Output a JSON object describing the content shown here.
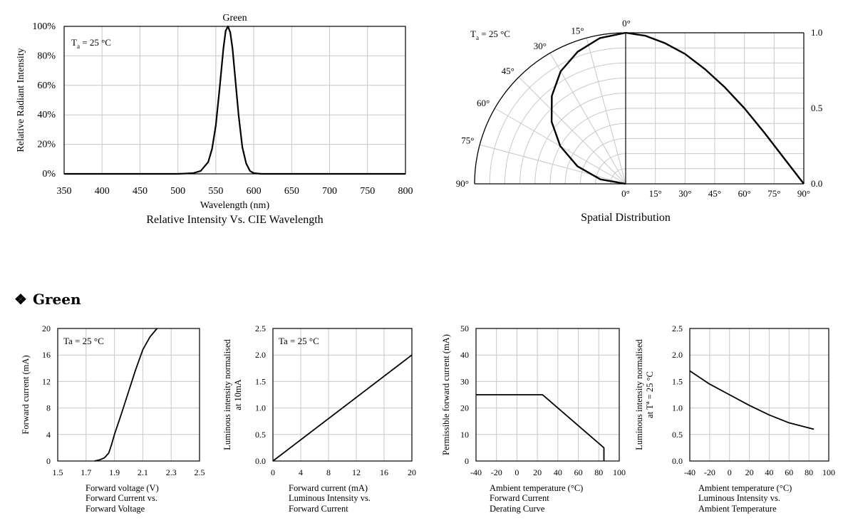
{
  "section": {
    "symbol": "❖",
    "title": "Green"
  },
  "chart_data": [
    {
      "type": "line",
      "id": "spectrum",
      "title": "Green",
      "caption": "Relative Intensity Vs. CIE Wavelength",
      "xlabel": "Wavelength (nm)",
      "ylabel": "Relative Radiant Intensity",
      "annotation": "T_a = 25 °C",
      "xlim": [
        350,
        800
      ],
      "ylim": [
        0,
        100
      ],
      "xticks": [
        "350",
        "400",
        "450",
        "500",
        "550",
        "600",
        "650",
        "700",
        "750",
        "800"
      ],
      "yticks": [
        "0%",
        "20%",
        "40%",
        "60%",
        "80%",
        "100%"
      ],
      "grid": true,
      "series": [
        {
          "x": [
            350,
            500,
            520,
            530,
            540,
            545,
            550,
            555,
            560,
            563,
            566,
            569,
            572,
            575,
            580,
            585,
            590,
            595,
            600,
            610,
            620,
            800
          ],
          "y": [
            0,
            0,
            0.5,
            2,
            8,
            17,
            33,
            58,
            85,
            97,
            100,
            96,
            85,
            68,
            40,
            18,
            7,
            2,
            0.5,
            0,
            0,
            0
          ]
        }
      ]
    },
    {
      "type": "polar",
      "id": "spatial",
      "caption": "Spatial Distribution",
      "annotation": "T_a = 25 °C",
      "angle_labels": [
        "0°",
        "15°",
        "30°",
        "45°",
        "60°",
        "75°",
        "90°"
      ],
      "bottom_labels": [
        "0°",
        "15°",
        "30°",
        "45°",
        "60°",
        "75°",
        "90°"
      ],
      "right_ticks": [
        "0.0",
        "0.5",
        "1.0"
      ],
      "series": [
        {
          "angle_deg": [
            0,
            10,
            20,
            30,
            40,
            50,
            60,
            70,
            80,
            90
          ],
          "intensity": [
            1.0,
            0.98,
            0.93,
            0.86,
            0.76,
            0.64,
            0.5,
            0.34,
            0.17,
            0.0
          ]
        }
      ]
    },
    {
      "type": "line",
      "id": "iv",
      "caption": [
        "Forward Current vs.",
        "Forward Voltage"
      ],
      "xlabel": "Forward voltage (V)",
      "ylabel": "Forward current (mA)",
      "annotation": "Ta = 25 °C",
      "xlim": [
        1.5,
        2.5
      ],
      "ylim": [
        0,
        20
      ],
      "xticks": [
        "1.5",
        "1.7",
        "1.9",
        "2.1",
        "2.3",
        "2.5"
      ],
      "yticks": [
        "0",
        "4",
        "8",
        "12",
        "16",
        "20"
      ],
      "grid": true,
      "series": [
        {
          "x": [
            1.76,
            1.8,
            1.83,
            1.86,
            1.88,
            1.9,
            1.95,
            2.0,
            2.05,
            2.1,
            2.15,
            2.2
          ],
          "y": [
            0,
            0.2,
            0.5,
            1.2,
            2.5,
            4,
            7.2,
            10.5,
            13.8,
            16.8,
            18.7,
            20
          ]
        }
      ]
    },
    {
      "type": "line",
      "id": "lum-vs-current",
      "caption": [
        "Luminous Intensity vs.",
        "Forward Current"
      ],
      "xlabel": "Forward current (mA)",
      "ylabel": [
        "Luminous intensity normalised",
        "at 10mA"
      ],
      "annotation": "Ta = 25 °C",
      "xlim": [
        0,
        20
      ],
      "ylim": [
        0,
        2.5
      ],
      "xticks": [
        "0",
        "4",
        "8",
        "12",
        "16",
        "20"
      ],
      "yticks": [
        "0.0",
        "0.5",
        "1.0",
        "1.5",
        "2.0",
        "2.5"
      ],
      "grid": true,
      "series": [
        {
          "x": [
            0,
            20
          ],
          "y": [
            0,
            2.0
          ]
        }
      ]
    },
    {
      "type": "line",
      "id": "derating",
      "caption": [
        "Forward Current",
        "Derating  Curve"
      ],
      "xlabel": "Ambient temperature (°C)",
      "ylabel": "Permissible forward current (mA)",
      "xlim": [
        -40,
        100
      ],
      "ylim": [
        0,
        50
      ],
      "xticks": [
        "-40",
        "-20",
        "0",
        "20",
        "40",
        "60",
        "80",
        "100"
      ],
      "yticks": [
        "0",
        "10",
        "20",
        "30",
        "40",
        "50"
      ],
      "grid": true,
      "series": [
        {
          "x": [
            -40,
            25,
            85,
            85
          ],
          "y": [
            25,
            25,
            5,
            0
          ]
        }
      ]
    },
    {
      "type": "line",
      "id": "lum-vs-temp",
      "caption": [
        "Luminous Intensity vs.",
        "Ambient Temperature"
      ],
      "xlabel": "Ambient temperature (°C)",
      "ylabel": [
        "Luminous intensity  normalised",
        "at T^a = 25 °C"
      ],
      "xlim": [
        -40,
        100
      ],
      "ylim": [
        0,
        2.5
      ],
      "xticks": [
        "-40",
        "-20",
        "0",
        "20",
        "40",
        "60",
        "80",
        "100"
      ],
      "yticks": [
        "0.0",
        "0.5",
        "1.0",
        "1.5",
        "2.0",
        "2.5"
      ],
      "grid": true,
      "series": [
        {
          "x": [
            -40,
            -20,
            0,
            20,
            40,
            60,
            85
          ],
          "y": [
            1.7,
            1.45,
            1.25,
            1.05,
            0.87,
            0.72,
            0.6
          ]
        }
      ]
    }
  ]
}
